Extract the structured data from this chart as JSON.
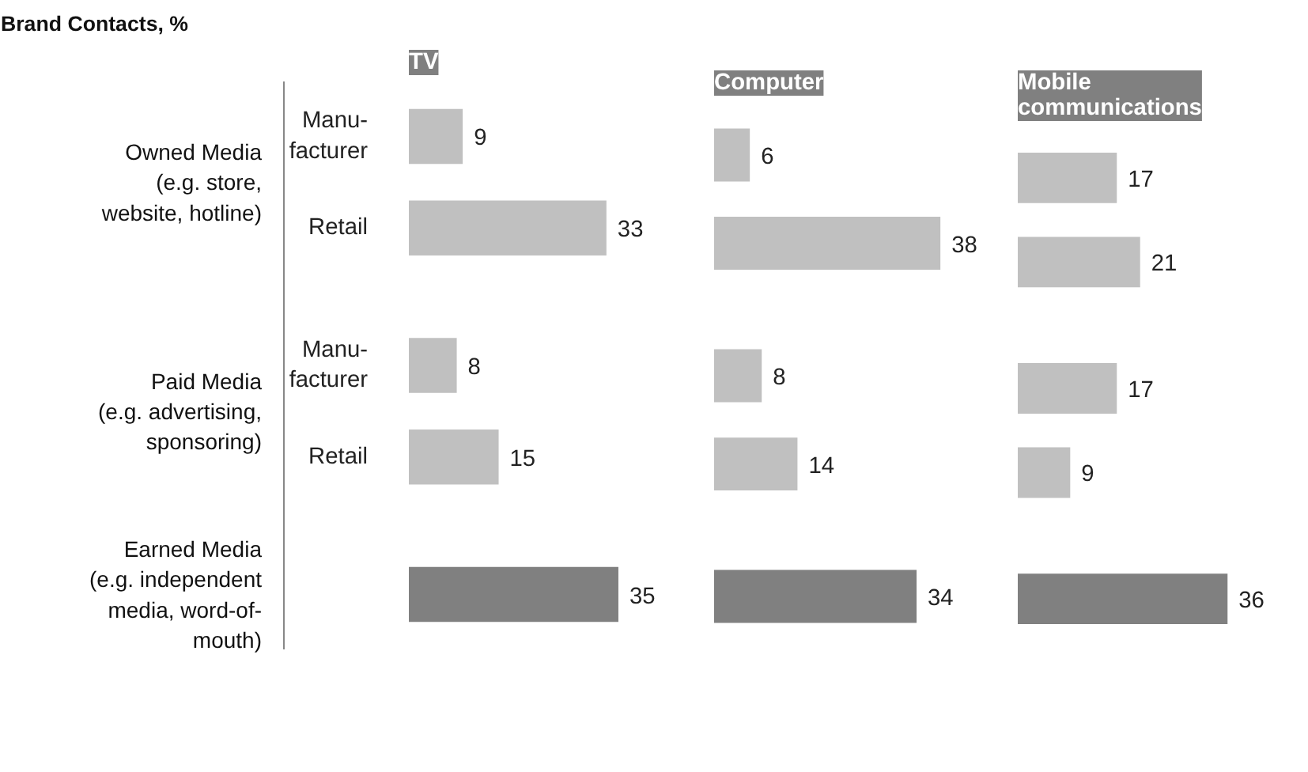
{
  "chart_data": [
    {
      "type": "bar",
      "orientation": "horizontal",
      "title": "Brand Contacts, %",
      "subtitle": "TV",
      "categories": [
        "Manu-\nfacturer",
        "Retail",
        "Manu-\nfacturer",
        "Retail",
        null
      ],
      "values": [
        9,
        33,
        8,
        15,
        35
      ],
      "colors": [
        "#c0c0c0",
        "#c0c0c0",
        "#c0c0c0",
        "#c0c0c0",
        "#808080"
      ],
      "data_labels": true,
      "tick_labels": "y",
      "grid": false,
      "annotations": [
        "Owned Media\n(e.g. store,\nwebsite, hotline)",
        "Paid Media\n(e.g. advertising,\nsponsoring)",
        "Earned Media\n(e.g. independent\nmedia, word-of-\nmouth)"
      ]
    },
    {
      "type": "bar",
      "orientation": "horizontal",
      "subtitle": "Computer",
      "categories": [
        null,
        null,
        null,
        null,
        null
      ],
      "values": [
        6,
        38,
        8,
        14,
        34
      ],
      "colors": [
        "#c0c0c0",
        "#c0c0c0",
        "#c0c0c0",
        "#c0c0c0",
        "#808080"
      ],
      "data_labels": true,
      "tick_labels": false,
      "grid": false
    },
    {
      "type": "bar",
      "orientation": "horizontal",
      "subtitle": "Mobile\ncommunications",
      "categories": [
        null,
        null,
        null,
        null,
        null
      ],
      "values": [
        17,
        21,
        17,
        9,
        36
      ],
      "colors": [
        "#c0c0c0",
        "#c0c0c0",
        "#c0c0c0",
        "#c0c0c0",
        "#808080"
      ],
      "data_labels": true,
      "tick_labels": false,
      "grid": false
    }
  ]
}
